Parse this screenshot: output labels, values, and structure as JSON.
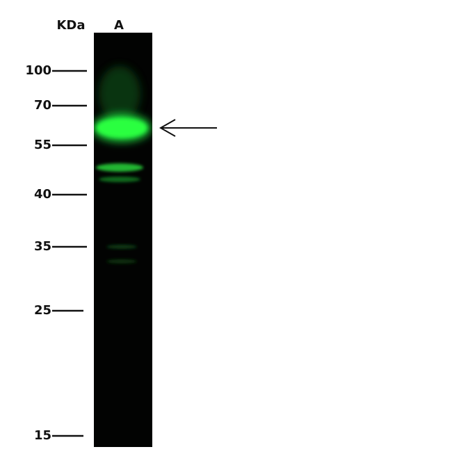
{
  "header": {
    "unit_label": "KDa",
    "lane_label": "A"
  },
  "markers": [
    "100",
    "70",
    "55",
    "40",
    "35",
    "25",
    "15"
  ]
}
